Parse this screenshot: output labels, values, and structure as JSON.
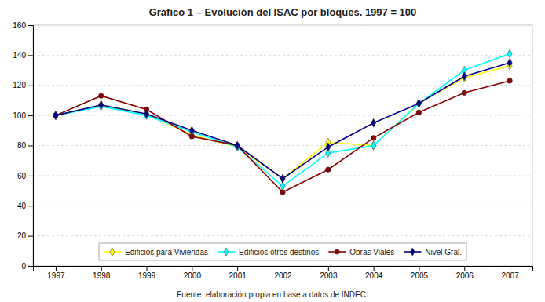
{
  "chart_data": {
    "type": "line",
    "title": "Gráfico 1 – Evolución del ISAC por bloques. 1997 = 100",
    "source": "Fuente: elaboración propia en base a datos de INDEC.",
    "x": [
      1997,
      1998,
      1999,
      2000,
      2001,
      2002,
      2003,
      2004,
      2005,
      2006,
      2007
    ],
    "series": [
      {
        "name": "Edificios para Viviendas",
        "color": "#FFFF00",
        "marker": "diamond",
        "values": [
          100,
          107,
          101,
          87,
          79,
          58,
          82,
          80,
          108,
          125,
          133
        ]
      },
      {
        "name": "Edificios otros destinos",
        "color": "#00FFFF",
        "marker": "diamond",
        "values": [
          100,
          106,
          100,
          89,
          79,
          53,
          75,
          80,
          108,
          130,
          141
        ]
      },
      {
        "name": "Obras Viales",
        "color": "#8B0000",
        "marker": "circle",
        "values": [
          100,
          113,
          104,
          86,
          80,
          49,
          64,
          85,
          102,
          115,
          123
        ]
      },
      {
        "name": "Nivel Gral.",
        "color": "#00008B",
        "marker": "diamond",
        "values": [
          100,
          107,
          101,
          90,
          80,
          58,
          79,
          95,
          108,
          126,
          135
        ]
      }
    ],
    "xlim": [
      1996.5,
      2007.5
    ],
    "xticks": [
      1997,
      1998,
      1999,
      2000,
      2001,
      2002,
      2003,
      2004,
      2005,
      2006,
      2007
    ],
    "ylim": [
      0,
      160
    ],
    "yticks": [
      0,
      20,
      40,
      60,
      80,
      100,
      120,
      140,
      160
    ],
    "grid": "y",
    "legend": "bottom"
  }
}
